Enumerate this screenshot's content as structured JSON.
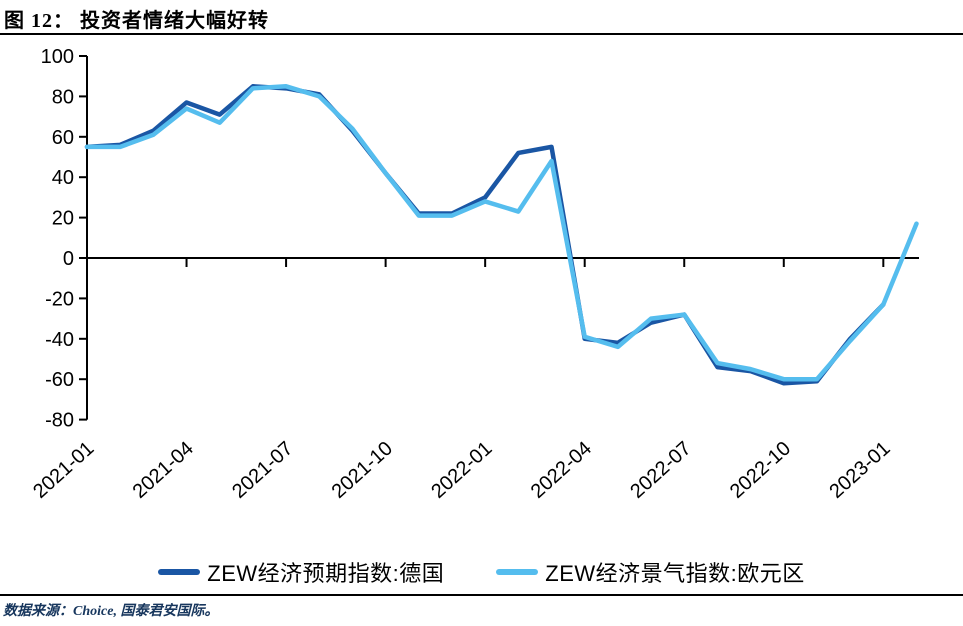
{
  "header": {
    "title": "图 12： 投资者情绪大幅好转"
  },
  "chart_data": {
    "type": "line",
    "title": "投资者情绪大幅好转",
    "categories": [
      "2021-01",
      "2021-02",
      "2021-03",
      "2021-04",
      "2021-05",
      "2021-06",
      "2021-07",
      "2021-08",
      "2021-09",
      "2021-10",
      "2021-11",
      "2021-12",
      "2022-01",
      "2022-02",
      "2022-03",
      "2022-04",
      "2022-05",
      "2022-06",
      "2022-07",
      "2022-08",
      "2022-09",
      "2022-10",
      "2022-11",
      "2022-12",
      "2023-01",
      "2023-02"
    ],
    "series": [
      {
        "name": "ZEW经济预期指数:德国",
        "color": "#1A56A4",
        "values": [
          55,
          56,
          63,
          77,
          71,
          85,
          84,
          81,
          63,
          42,
          22,
          22,
          30,
          52,
          55,
          -40,
          -42,
          -32,
          -28,
          -54,
          -56,
          -62,
          -61,
          -40,
          -23,
          null
        ]
      },
      {
        "name": "ZEW经济景气指数:欧元区",
        "color": "#55BDEE",
        "values": [
          55,
          55,
          61,
          74,
          67,
          84,
          85,
          80,
          64,
          42,
          21,
          21,
          28,
          23,
          48,
          -39,
          -44,
          -30,
          -28,
          -52,
          -55,
          -60,
          -60,
          -41,
          -23,
          17
        ]
      }
    ],
    "ylim": [
      -80,
      100
    ],
    "yticks": [
      100,
      80,
      60,
      40,
      20,
      0,
      -20,
      -40,
      -60,
      -80
    ],
    "xtick_label_indices": [
      0,
      3,
      6,
      9,
      12,
      15,
      18,
      21,
      24
    ],
    "x_label_rotation_deg": -42,
    "grid": false,
    "zero_baseline": true,
    "legend_position": "bottom"
  },
  "footer": {
    "source_text": "数据来源：Choice, 国泰君安国际。"
  }
}
